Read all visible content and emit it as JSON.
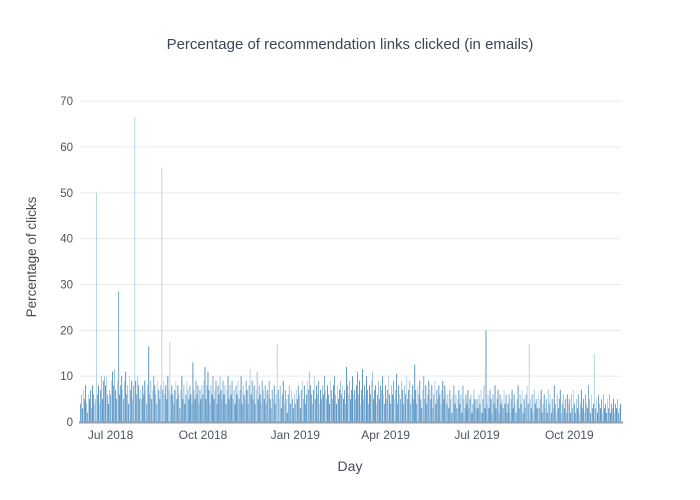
{
  "chart_data": {
    "type": "bar",
    "title": "Percentage of recommendation links clicked (in emails)",
    "xlabel": "Day",
    "ylabel": "Percentage of clicks",
    "x_start": "2018-06-01",
    "x_frequency": "daily",
    "ylim": [
      0,
      72
    ],
    "yticks": [
      0,
      10,
      20,
      30,
      40,
      50,
      60,
      70
    ],
    "x_ticks": [
      {
        "label": "Jul 2018",
        "index": 30
      },
      {
        "label": "Oct 2018",
        "index": 122
      },
      {
        "label": "Jan 2019",
        "index": 214
      },
      {
        "label": "Apr 2019",
        "index": 304
      },
      {
        "label": "Jul 2019",
        "index": 395
      },
      {
        "label": "Oct 2019",
        "index": 487
      }
    ],
    "grid": true,
    "legend": "none",
    "notable_spikes": [
      {
        "date": "2018-06-17",
        "value": 50
      },
      {
        "date": "2018-07-09",
        "value": 28.5
      },
      {
        "date": "2018-07-25",
        "value": 66.5
      },
      {
        "date": "2018-08-08",
        "value": 16.5
      },
      {
        "date": "2018-08-21",
        "value": 55.5
      },
      {
        "date": "2018-08-29",
        "value": 17.5
      },
      {
        "date": "2018-12-14",
        "value": 17
      },
      {
        "date": "2019-07-10",
        "value": 20
      },
      {
        "date": "2019-08-22",
        "value": 17
      },
      {
        "date": "2019-10-26",
        "value": 14.8
      }
    ],
    "values": [
      4,
      6,
      3,
      7,
      5,
      8,
      4,
      2,
      6,
      5,
      7,
      3,
      8,
      6,
      4,
      5,
      50,
      6,
      8,
      4,
      7,
      10,
      5,
      9,
      10,
      8,
      10,
      6,
      4,
      7,
      6,
      9,
      11,
      8,
      11.5,
      7,
      5,
      9,
      28.5,
      6,
      8,
      10,
      7,
      5,
      9,
      11,
      6,
      8,
      4,
      10,
      7,
      9,
      5,
      8,
      66.5,
      9,
      6,
      10,
      8,
      5,
      7,
      5,
      8,
      6,
      9,
      7,
      4,
      8,
      16.5,
      6,
      9,
      5,
      7,
      10,
      8,
      6,
      4,
      9,
      7,
      5,
      8,
      55.5,
      7,
      9,
      6,
      8,
      5,
      10,
      7,
      17.5,
      6,
      8,
      6,
      4,
      7,
      9,
      5,
      8,
      6,
      3,
      7,
      10,
      5,
      8,
      4,
      6,
      9,
      7,
      5,
      8,
      6,
      4,
      13,
      7,
      5,
      9,
      6,
      8,
      4,
      7,
      5,
      8,
      6,
      9,
      12,
      5,
      8,
      11,
      7,
      4,
      8,
      6,
      10,
      5,
      7,
      9,
      4,
      8,
      6,
      10,
      7,
      5,
      9,
      6,
      8,
      4,
      7,
      10,
      5,
      8,
      6,
      9,
      5,
      7,
      4,
      8,
      6,
      9,
      5,
      7,
      10,
      4,
      8,
      6,
      5,
      9,
      7,
      4,
      8,
      11.5,
      6,
      9,
      5,
      8,
      4,
      7,
      11,
      5,
      8,
      6,
      4,
      9,
      7,
      5,
      8,
      4,
      7,
      6,
      9,
      5,
      3,
      7,
      5,
      8,
      4,
      6,
      17,
      7,
      5,
      8,
      3,
      6,
      9,
      4,
      7,
      5,
      2,
      6,
      8,
      4,
      7,
      5,
      3,
      6,
      4,
      7,
      5,
      8,
      6,
      3,
      7,
      9,
      5,
      8,
      4,
      6,
      9,
      7,
      11,
      8,
      6,
      4,
      7,
      10,
      5,
      8,
      6,
      9,
      4,
      7,
      5,
      8,
      6,
      10,
      7,
      5,
      8,
      6,
      4,
      9,
      7,
      5,
      8,
      10,
      6,
      4,
      8,
      5,
      7,
      9,
      6,
      8,
      5,
      7,
      4,
      12,
      8,
      6,
      9,
      5,
      7,
      10,
      6,
      7,
      5,
      8,
      11,
      6,
      9,
      4,
      7,
      11.5,
      5,
      8,
      6,
      10,
      7,
      4,
      8,
      6,
      9,
      11,
      5,
      7,
      8,
      4,
      6,
      9,
      5,
      8,
      7,
      10,
      6,
      4,
      8,
      5,
      7,
      10,
      6,
      4,
      8,
      6,
      9,
      5,
      7,
      10.5,
      4,
      8,
      6,
      5,
      9,
      7,
      4,
      8,
      6,
      10,
      5,
      7,
      9,
      4,
      6,
      8,
      5,
      12.5,
      7,
      4,
      8,
      6,
      9,
      5,
      3,
      7,
      10,
      5,
      8,
      4,
      6,
      9,
      7,
      5,
      8,
      3,
      6,
      9,
      4,
      7,
      5,
      8,
      6,
      4,
      7,
      9,
      5,
      8,
      6,
      4,
      6,
      3,
      7,
      5,
      2,
      6,
      8,
      4,
      6,
      3,
      5,
      7,
      4,
      6,
      2,
      8,
      5,
      3,
      6,
      4,
      7,
      3,
      5,
      6,
      2,
      4,
      7,
      5,
      3,
      5,
      3,
      6,
      4,
      7,
      2,
      5,
      8,
      3,
      20,
      4,
      6,
      3,
      7,
      5,
      2,
      6,
      4,
      8,
      3,
      5,
      7,
      2,
      6,
      4,
      5,
      3,
      7,
      4,
      6,
      2,
      4,
      6,
      2,
      5,
      7,
      3,
      6,
      4,
      2,
      5,
      8,
      3,
      6,
      4,
      7,
      2,
      5,
      3,
      6,
      8,
      4,
      17,
      5,
      3,
      6,
      2,
      7,
      4,
      5,
      3,
      6,
      3,
      5,
      7,
      2,
      4,
      6,
      3,
      5,
      2,
      7,
      4,
      6,
      2,
      5,
      3,
      8,
      4,
      2,
      6,
      3,
      5,
      7,
      2,
      4,
      6,
      3,
      5,
      2,
      6,
      4,
      5,
      2,
      6,
      3,
      7,
      4,
      2,
      5,
      3,
      6,
      2,
      4,
      7,
      3,
      5,
      2,
      6,
      4,
      3,
      8,
      5,
      2,
      6,
      3,
      4,
      14.8,
      3,
      5,
      2,
      6,
      4,
      3,
      5,
      2,
      6,
      3,
      4,
      2,
      5,
      3,
      6,
      2,
      4,
      3,
      5,
      2,
      4,
      3,
      5,
      2,
      3,
      4
    ],
    "colors": {
      "bar_palette": [
        "#aecde6",
        "#8ab6da",
        "#5f9aca",
        "#4387ba"
      ],
      "shade_pattern": [
        2,
        1,
        3,
        0,
        2,
        3,
        1,
        2,
        0,
        3,
        2,
        1,
        3,
        2,
        0,
        1,
        3,
        2,
        3,
        0,
        2,
        1,
        3
      ],
      "shade_overrides": {
        "16": 0,
        "54": 0,
        "81": 0,
        "89": 0,
        "196": 0,
        "447": 0,
        "512": 0,
        "38": 2,
        "68": 3,
        "112": 3,
        "333": 3,
        "404": 3
      },
      "gridline": "#e8eaed",
      "baseline": "#969da5",
      "title_text": "#3c4554",
      "axis_text": "#444b53",
      "tick_text": "#4d545c",
      "background": "#ffffff"
    }
  }
}
